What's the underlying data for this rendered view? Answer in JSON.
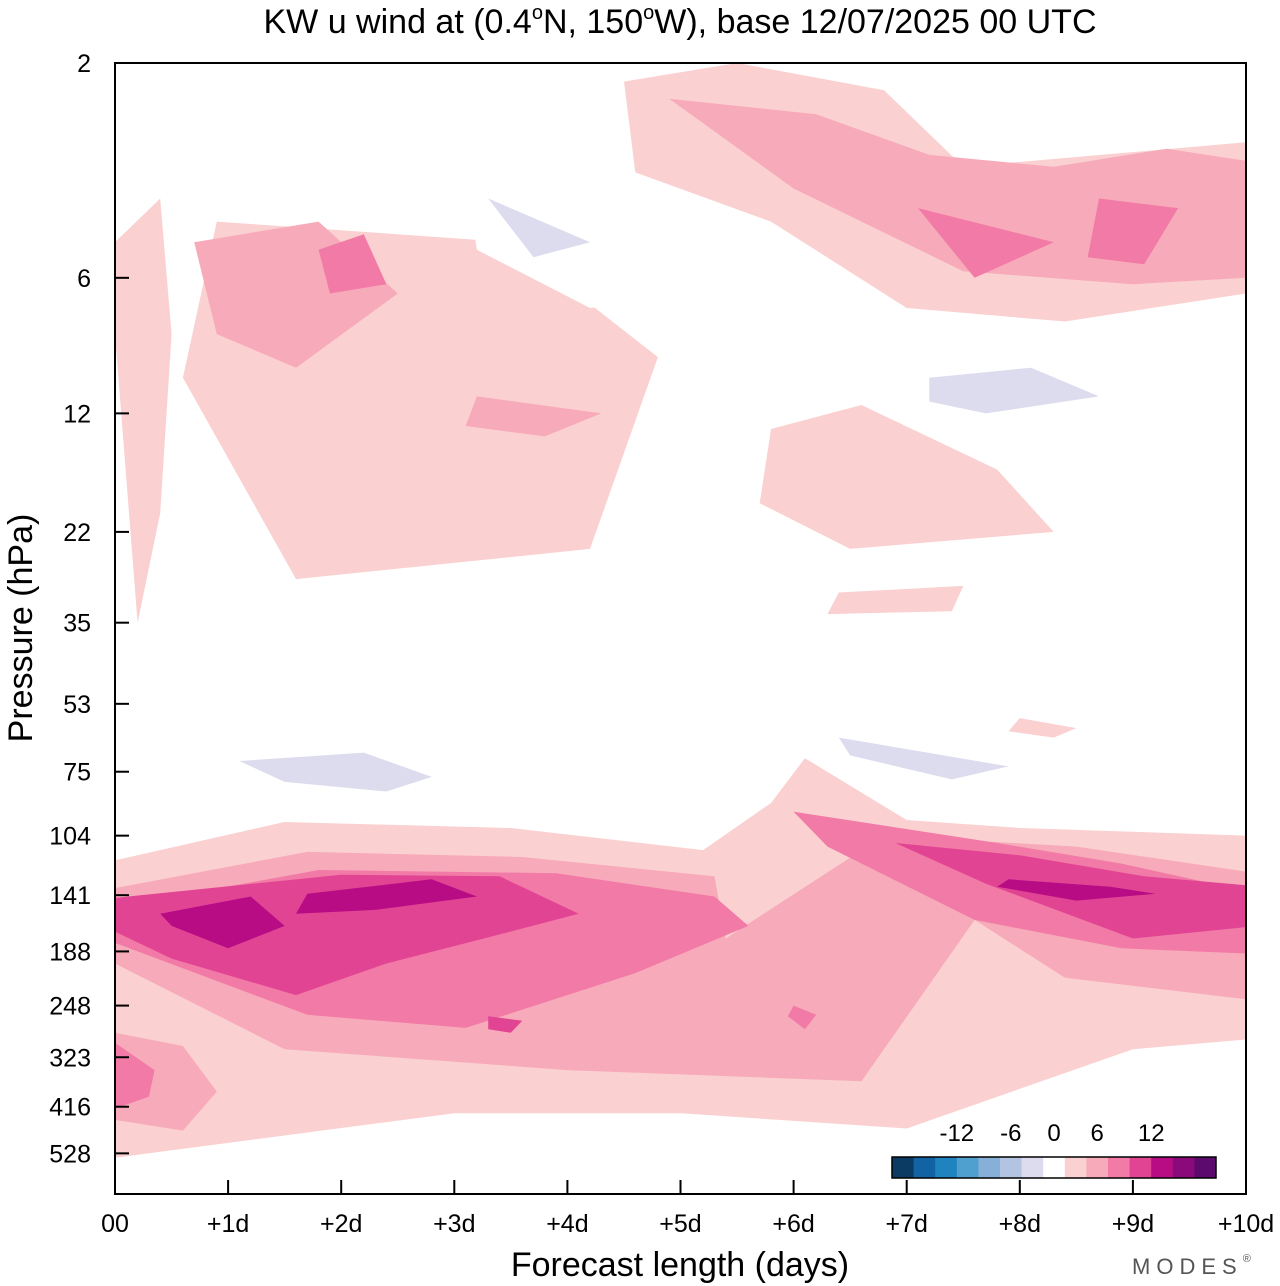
{
  "chart_data": {
    "type": "heatmap",
    "title": {
      "prefix": "KW u wind at (0.4",
      "deg1": "o",
      "mid": "N, 150",
      "deg2": "o",
      "suffix": "W),  base 12/07/2025  00 UTC"
    },
    "xlabel": "Forecast length (days)",
    "ylabel": "Pressure (hPa)",
    "x_ticks": [
      "00",
      "+1d",
      "+2d",
      "+3d",
      "+4d",
      "+5d",
      "+6d",
      "+7d",
      "+8d",
      "+9d",
      "+10d"
    ],
    "x_range_days": [
      0,
      10
    ],
    "y_ticks": [
      "2",
      "6",
      "12",
      "22",
      "35",
      "53",
      "75",
      "104",
      "141",
      "188",
      "248",
      "323",
      "416",
      "528"
    ],
    "y_range_hpa": [
      2,
      650
    ],
    "colorbar": {
      "tick_labels": [
        "-12",
        "-6",
        "0",
        "6",
        "12"
      ],
      "levels": [
        -16,
        -14,
        -12,
        -10,
        -8,
        -6,
        -4,
        -2,
        2,
        4,
        6,
        8,
        10,
        12,
        14,
        16
      ],
      "colors": [
        "#0b3a62",
        "#1263a4",
        "#1f83c0",
        "#4f9fcf",
        "#86b0d8",
        "#b3c4e2",
        "#dcdcee",
        "#ffffff",
        "#fbd0d0",
        "#f7aab9",
        "#f27aa6",
        "#e24494",
        "#b70c84",
        "#8a0a7b",
        "#5c0a6d"
      ],
      "placement": "bottom-right"
    },
    "grid": false,
    "field": [
      {
        "level": 2,
        "days": [
          0.0,
          0.4,
          0.5,
          0.4,
          0.2,
          0.0
        ],
        "hpa": [
          5.0,
          4.0,
          8.0,
          20.0,
          35.0,
          8.0
        ]
      },
      {
        "level": 2,
        "days": [
          0.9,
          3.5,
          4.8,
          4.2,
          1.6,
          0.6
        ],
        "hpa": [
          4.5,
          5.0,
          9.0,
          24.0,
          28.0,
          10.0
        ]
      },
      {
        "level": 4,
        "days": [
          0.7,
          1.8,
          2.5,
          1.6,
          0.9
        ],
        "hpa": [
          5.0,
          4.5,
          6.5,
          9.5,
          8.0
        ]
      },
      {
        "level": 6,
        "days": [
          1.8,
          2.2,
          2.4,
          1.9
        ],
        "hpa": [
          5.2,
          4.8,
          6.2,
          6.5
        ]
      },
      {
        "level": 4,
        "days": [
          3.2,
          4.3,
          3.8,
          3.1
        ],
        "hpa": [
          11.0,
          12.0,
          13.5,
          12.8
        ]
      },
      {
        "level": 2,
        "days": [
          4.5,
          5.5,
          6.8,
          7.5,
          10.0,
          10.0,
          8.4,
          7.0,
          5.8,
          4.6
        ],
        "hpa": [
          2.2,
          2.0,
          2.3,
          3.4,
          3.0,
          6.5,
          7.5,
          7.0,
          4.5,
          3.5
        ]
      },
      {
        "level": 4,
        "days": [
          4.9,
          6.2,
          7.2,
          8.3,
          9.3,
          10.0,
          10.0,
          9.0,
          7.5,
          6.0
        ],
        "hpa": [
          2.4,
          2.6,
          3.2,
          3.4,
          3.1,
          3.3,
          6.0,
          6.2,
          5.8,
          3.8
        ]
      },
      {
        "level": 6,
        "days": [
          7.1,
          8.3,
          7.6
        ],
        "hpa": [
          4.2,
          5.0,
          6.0
        ]
      },
      {
        "level": 6,
        "days": [
          8.7,
          9.4,
          9.1,
          8.6
        ],
        "hpa": [
          4.0,
          4.2,
          5.6,
          5.4
        ]
      },
      {
        "level": 2,
        "days": [
          5.8,
          6.6,
          7.8,
          8.3,
          6.5,
          5.7
        ],
        "hpa": [
          13.0,
          11.5,
          16.0,
          22.0,
          24.0,
          19.0
        ]
      },
      {
        "level": 2,
        "days": [
          6.4,
          7.5,
          7.4,
          6.3
        ],
        "hpa": [
          30.0,
          29.0,
          33.0,
          33.5
        ]
      },
      {
        "level": -2,
        "days": [
          1.3,
          3.0,
          4.3,
          3.4,
          2.0
        ],
        "hpa": [
          2.1,
          2.0,
          2.7,
          3.6,
          2.7
        ]
      },
      {
        "level": -2,
        "days": [
          3.1,
          4.6,
          5.5,
          4.2,
          3.2
        ],
        "hpa": [
          3.6,
          4.2,
          6.3,
          7.0,
          5.2
        ]
      },
      {
        "level": -4,
        "days": [
          3.3,
          4.2,
          3.7
        ],
        "hpa": [
          4.0,
          5.0,
          5.4
        ]
      },
      {
        "level": -2,
        "days": [
          6.3,
          8.6,
          9.3,
          8.7,
          7.2,
          6.5
        ],
        "hpa": [
          8.5,
          7.8,
          10.0,
          13.0,
          12.5,
          10.5
        ]
      },
      {
        "level": -4,
        "days": [
          7.2,
          8.1,
          8.7,
          7.7,
          7.2
        ],
        "hpa": [
          10.0,
          9.5,
          11.0,
          12.0,
          11.3
        ]
      },
      {
        "level": -2,
        "days": [
          0.0,
          0.5,
          1.6,
          3.0,
          4.8,
          4.7,
          3.2,
          1.5,
          0.3,
          0.0
        ],
        "hpa": [
          55.0,
          58.0,
          60.0,
          62.0,
          60.0,
          82.0,
          95.0,
          86.0,
          75.0,
          72.0
        ]
      },
      {
        "level": -4,
        "days": [
          1.1,
          2.2,
          2.8,
          2.4,
          1.5
        ],
        "hpa": [
          71.0,
          68.0,
          77.0,
          83.0,
          79.0
        ]
      },
      {
        "level": -2,
        "days": [
          6.0,
          7.8,
          8.6,
          8.9,
          8.4,
          6.8
        ],
        "hpa": [
          57.0,
          60.0,
          68.0,
          84.0,
          96.0,
          76.0
        ]
      },
      {
        "level": -4,
        "days": [
          6.4,
          7.9,
          7.4,
          6.5
        ],
        "hpa": [
          63.0,
          73.0,
          78.0,
          69.0
        ]
      },
      {
        "level": 2,
        "days": [
          0.0,
          1.5,
          3.5,
          5.2,
          5.8,
          6.1,
          7.0,
          8.0,
          10.0,
          10.0,
          9.0,
          7.0,
          5.0,
          3.0,
          0.0
        ],
        "hpa": [
          118.0,
          97.0,
          100.0,
          112.0,
          88.0,
          70.0,
          96.0,
          100.0,
          104.0,
          295.0,
          310.0,
          465.0,
          430.0,
          430.0,
          540.0
        ]
      },
      {
        "level": 4,
        "days": [
          0.0,
          1.7,
          3.6,
          5.3,
          5.4,
          6.8,
          8.5,
          10.0,
          10.0,
          8.4,
          7.6,
          6.6,
          4.0,
          1.5,
          0.0
        ],
        "hpa": [
          136.0,
          113.0,
          116.0,
          128.0,
          176.0,
          104.0,
          110.0,
          125.0,
          240.0,
          215.0,
          160.0,
          365.0,
          345.0,
          310.0,
          200.0
        ]
      },
      {
        "level": 6,
        "days": [
          0.0,
          1.8,
          3.9,
          5.3,
          5.6,
          4.6,
          3.1,
          1.7,
          0.0
        ],
        "hpa": [
          150.0,
          124.0,
          126.0,
          142.0,
          165.0,
          210.0,
          278.0,
          260.0,
          180.0
        ]
      },
      {
        "level": 6,
        "days": [
          6.0,
          7.8,
          8.9,
          10.0,
          10.0,
          8.9,
          7.6,
          6.3
        ],
        "hpa": [
          92.0,
          108.0,
          120.0,
          138.0,
          190.0,
          185.0,
          160.0,
          110.0
        ]
      },
      {
        "level": 8,
        "days": [
          0.0,
          2.0,
          3.4,
          4.1,
          3.3,
          2.4,
          1.6,
          0.5,
          0.0
        ],
        "hpa": [
          143.0,
          127.0,
          128.0,
          155.0,
          175.0,
          200.0,
          235.0,
          195.0,
          170.0
        ]
      },
      {
        "level": 8,
        "days": [
          6.9,
          8.0,
          9.1,
          10.0,
          10.0,
          9.0,
          7.7
        ],
        "hpa": [
          108.0,
          115.0,
          128.0,
          134.0,
          166.0,
          176.0,
          133.0
        ]
      },
      {
        "level": 10,
        "days": [
          0.4,
          1.2,
          1.5,
          1.0,
          0.5
        ],
        "hpa": [
          155.0,
          142.0,
          165.0,
          185.0,
          165.0
        ]
      },
      {
        "level": 10,
        "days": [
          1.7,
          2.8,
          3.2,
          2.3,
          1.6
        ],
        "hpa": [
          140.0,
          130.0,
          142.0,
          152.0,
          155.0
        ]
      },
      {
        "level": 10,
        "days": [
          7.9,
          8.8,
          9.2,
          8.5,
          7.8
        ],
        "hpa": [
          130.0,
          135.0,
          140.0,
          145.0,
          135.0
        ]
      },
      {
        "level": 4,
        "days": [
          0.0,
          0.6,
          0.9,
          0.6,
          0.0
        ],
        "hpa": [
          285.0,
          305.0,
          385.0,
          470.0,
          445.0
        ]
      },
      {
        "level": 6,
        "days": [
          0.0,
          0.35,
          0.3,
          0.0
        ],
        "hpa": [
          300.0,
          345.0,
          395.0,
          420.0
        ]
      },
      {
        "level": 8,
        "days": [
          3.3,
          3.6,
          3.5,
          3.3
        ],
        "hpa": [
          262.0,
          268.0,
          285.0,
          280.0
        ]
      },
      {
        "level": 6,
        "days": [
          6.0,
          6.2,
          6.1,
          5.95
        ],
        "hpa": [
          248.0,
          260.0,
          280.0,
          262.0
        ]
      },
      {
        "level": -2,
        "days": [
          1.5,
          3.0,
          4.5,
          5.5,
          5.0,
          3.0,
          1.6
        ],
        "hpa": [
          650.0,
          575.0,
          585.0,
          640.0,
          660.0,
          665.0,
          660.0
        ]
      },
      {
        "level": 2,
        "days": [
          8.0,
          8.5,
          8.3,
          7.9
        ],
        "hpa": [
          57.0,
          60.0,
          63.0,
          61.0
        ]
      }
    ]
  },
  "branding": {
    "text": "MODES",
    "mark": "®"
  }
}
